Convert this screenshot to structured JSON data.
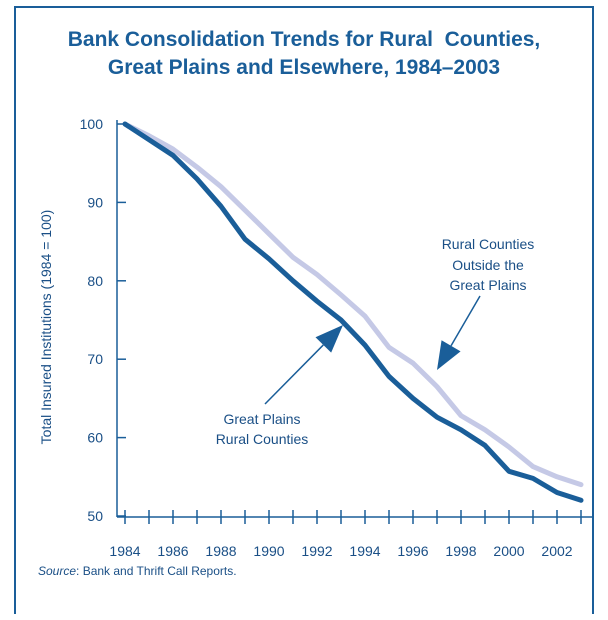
{
  "chart_data": {
    "type": "line",
    "title_lines": [
      "Bank Consolidation Trends for Rural  Counties,",
      "Great Plains and Elsewhere, 1984–2003"
    ],
    "ylabel": "Total Insured Institutions (1984 = 100)",
    "xlabel": "",
    "x": [
      1984,
      1985,
      1986,
      1987,
      1988,
      1989,
      1990,
      1991,
      1992,
      1993,
      1994,
      1995,
      1996,
      1997,
      1998,
      1999,
      2000,
      2001,
      2002,
      2003
    ],
    "xlim": [
      1983.5,
      2003.5
    ],
    "ylim": [
      50,
      100
    ],
    "x_ticks": [
      1984,
      1985,
      1986,
      1987,
      1988,
      1989,
      1990,
      1991,
      1992,
      1993,
      1994,
      1995,
      1996,
      1997,
      1998,
      1999,
      2000,
      2001,
      2002,
      2003
    ],
    "x_tick_labels": [
      "1984",
      "1986",
      "1988",
      "1990",
      "1992",
      "1994",
      "1996",
      "1998",
      "2000",
      "2002"
    ],
    "y_ticks": [
      50,
      60,
      70,
      80,
      90,
      100
    ],
    "y_tick_labels": [
      "50",
      "60",
      "70",
      "80",
      "90",
      "100"
    ],
    "grid": false,
    "series": [
      {
        "name": "Rural Counties Outside the Great Plains",
        "color": "#c5c9e6",
        "values": [
          100,
          98.5,
          96.8,
          94.5,
          92.0,
          89.0,
          86.0,
          83.0,
          80.8,
          78.2,
          75.5,
          71.5,
          69.5,
          66.5,
          62.8,
          61.0,
          58.8,
          56.3,
          55.0,
          54.0
        ]
      },
      {
        "name": "Great Plains Rural Counties",
        "color": "#1a5e99",
        "values": [
          100,
          98.0,
          96.0,
          93.0,
          89.5,
          85.3,
          82.8,
          80.0,
          77.4,
          75.0,
          71.8,
          67.8,
          65.0,
          62.6,
          61.0,
          59.0,
          55.7,
          54.8,
          53.0,
          52.0
        ]
      }
    ],
    "annotations": [
      {
        "lines": [
          "Rural Counties",
          "Outside the",
          "Great Plains"
        ]
      },
      {
        "lines": [
          "Great Plains",
          "Rural Counties"
        ]
      }
    ],
    "source_label": "Source",
    "source_text": ":  Bank and Thrift Call Reports.",
    "colors": {
      "frame": "#1a5e99",
      "text": "#1a4f86",
      "arrow": "#1a5e99"
    }
  }
}
